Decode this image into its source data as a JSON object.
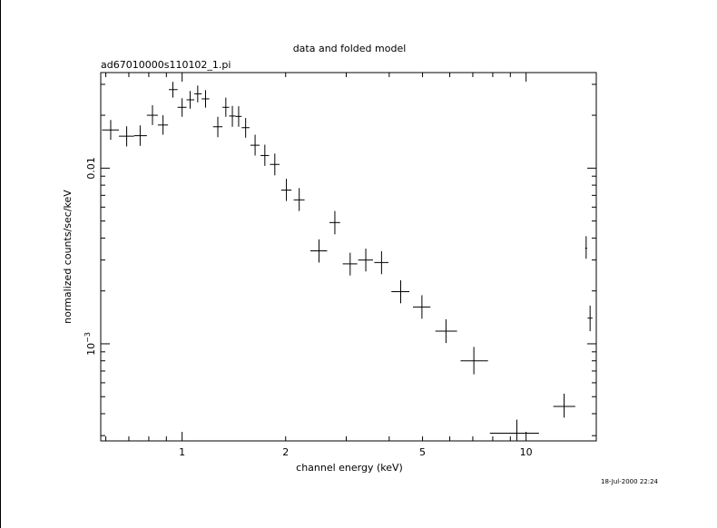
{
  "chart_data": {
    "type": "scatter",
    "title": "data and folded model",
    "subtitle": "ad67010000s110102_1.pi",
    "xlabel": "channel energy (keV)",
    "ylabel": "normalized counts/sec/keV",
    "timestamp": "18-Jul-2000 22:24",
    "x_scale": "log",
    "y_scale": "log",
    "xlim": [
      0.58,
      16.0
    ],
    "ylim": [
      0.00028,
      0.035
    ],
    "x_ticks": [
      {
        "value": 1,
        "label": "1"
      },
      {
        "value": 2,
        "label": "2"
      },
      {
        "value": 5,
        "label": "5"
      },
      {
        "value": 10,
        "label": "10"
      }
    ],
    "y_ticks": [
      {
        "value": 0.01,
        "label": "0.01"
      },
      {
        "value": 0.001,
        "label": "10",
        "exp": "−3"
      }
    ],
    "grid": false,
    "legend": "none",
    "points": [
      {
        "x": 0.62,
        "xlo": 0.585,
        "xhi": 0.655,
        "y": 0.0165,
        "ylo": 0.0145,
        "yhi": 0.0188
      },
      {
        "x": 0.69,
        "xlo": 0.655,
        "xhi": 0.725,
        "y": 0.0152,
        "ylo": 0.0133,
        "yhi": 0.0173
      },
      {
        "x": 0.755,
        "xlo": 0.725,
        "xhi": 0.79,
        "y": 0.0153,
        "ylo": 0.0134,
        "yhi": 0.0175
      },
      {
        "x": 0.82,
        "xlo": 0.79,
        "xhi": 0.85,
        "y": 0.02,
        "ylo": 0.0176,
        "yhi": 0.0228
      },
      {
        "x": 0.88,
        "xlo": 0.85,
        "xhi": 0.91,
        "y": 0.0176,
        "ylo": 0.0155,
        "yhi": 0.02
      },
      {
        "x": 0.94,
        "xlo": 0.915,
        "xhi": 0.97,
        "y": 0.028,
        "ylo": 0.0252,
        "yhi": 0.031
      },
      {
        "x": 1.0,
        "xlo": 0.97,
        "xhi": 1.03,
        "y": 0.0222,
        "ylo": 0.0196,
        "yhi": 0.025
      },
      {
        "x": 1.055,
        "xlo": 1.03,
        "xhi": 1.085,
        "y": 0.0245,
        "ylo": 0.0218,
        "yhi": 0.0275
      },
      {
        "x": 1.11,
        "xlo": 1.085,
        "xhi": 1.14,
        "y": 0.0265,
        "ylo": 0.0237,
        "yhi": 0.0295
      },
      {
        "x": 1.17,
        "xlo": 1.14,
        "xhi": 1.2,
        "y": 0.0248,
        "ylo": 0.0221,
        "yhi": 0.0278
      },
      {
        "x": 1.27,
        "xlo": 1.23,
        "xhi": 1.31,
        "y": 0.0172,
        "ylo": 0.015,
        "yhi": 0.0196
      },
      {
        "x": 1.34,
        "xlo": 1.31,
        "xhi": 1.37,
        "y": 0.0222,
        "ylo": 0.0196,
        "yhi": 0.0252
      },
      {
        "x": 1.4,
        "xlo": 1.37,
        "xhi": 1.43,
        "y": 0.0198,
        "ylo": 0.0172,
        "yhi": 0.0226
      },
      {
        "x": 1.46,
        "xlo": 1.43,
        "xhi": 1.49,
        "y": 0.0197,
        "ylo": 0.0172,
        "yhi": 0.0225
      },
      {
        "x": 1.53,
        "xlo": 1.49,
        "xhi": 1.57,
        "y": 0.017,
        "ylo": 0.0149,
        "yhi": 0.0193
      },
      {
        "x": 1.63,
        "xlo": 1.58,
        "xhi": 1.68,
        "y": 0.0135,
        "ylo": 0.0118,
        "yhi": 0.0155
      },
      {
        "x": 1.74,
        "xlo": 1.69,
        "xhi": 1.79,
        "y": 0.0118,
        "ylo": 0.0103,
        "yhi": 0.0136
      },
      {
        "x": 1.86,
        "xlo": 1.8,
        "xhi": 1.92,
        "y": 0.0105,
        "ylo": 0.0091,
        "yhi": 0.0121
      },
      {
        "x": 2.01,
        "xlo": 1.94,
        "xhi": 2.08,
        "y": 0.0075,
        "ylo": 0.0065,
        "yhi": 0.0087
      },
      {
        "x": 2.19,
        "xlo": 2.11,
        "xhi": 2.27,
        "y": 0.0066,
        "ylo": 0.0057,
        "yhi": 0.0077
      },
      {
        "x": 2.5,
        "xlo": 2.36,
        "xhi": 2.64,
        "y": 0.00338,
        "ylo": 0.0029,
        "yhi": 0.00393
      },
      {
        "x": 2.78,
        "xlo": 2.68,
        "xhi": 2.88,
        "y": 0.0049,
        "ylo": 0.0042,
        "yhi": 0.0057
      },
      {
        "x": 3.08,
        "xlo": 2.93,
        "xhi": 3.23,
        "y": 0.00285,
        "ylo": 0.00245,
        "yhi": 0.0033
      },
      {
        "x": 3.42,
        "xlo": 3.25,
        "xhi": 3.59,
        "y": 0.003,
        "ylo": 0.00258,
        "yhi": 0.00348
      },
      {
        "x": 3.8,
        "xlo": 3.62,
        "xhi": 3.98,
        "y": 0.0029,
        "ylo": 0.00249,
        "yhi": 0.00337
      },
      {
        "x": 4.32,
        "xlo": 4.06,
        "xhi": 4.58,
        "y": 0.00198,
        "ylo": 0.0017,
        "yhi": 0.0023
      },
      {
        "x": 4.98,
        "xlo": 4.69,
        "xhi": 5.27,
        "y": 0.00162,
        "ylo": 0.00139,
        "yhi": 0.00189
      },
      {
        "x": 5.85,
        "xlo": 5.45,
        "xhi": 6.3,
        "y": 0.00118,
        "ylo": 0.00101,
        "yhi": 0.00138
      },
      {
        "x": 7.05,
        "xlo": 6.45,
        "xhi": 7.75,
        "y": 0.0008,
        "ylo": 0.00067,
        "yhi": 0.00096
      },
      {
        "x": 9.4,
        "xlo": 7.85,
        "xhi": 10.9,
        "y": 0.00031,
        "ylo": 0.00028,
        "yhi": 0.00037
      },
      {
        "x": 12.9,
        "xlo": 12.0,
        "xhi": 13.9,
        "y": 0.00044,
        "ylo": 0.00038,
        "yhi": 0.00052
      },
      {
        "x": 14.95,
        "xlo": 14.85,
        "xhi": 15.05,
        "y": 0.0035,
        "ylo": 0.00305,
        "yhi": 0.0041
      },
      {
        "x": 15.35,
        "xlo": 15.1,
        "xhi": 15.6,
        "y": 0.0014,
        "ylo": 0.00118,
        "yhi": 0.00165
      }
    ]
  }
}
